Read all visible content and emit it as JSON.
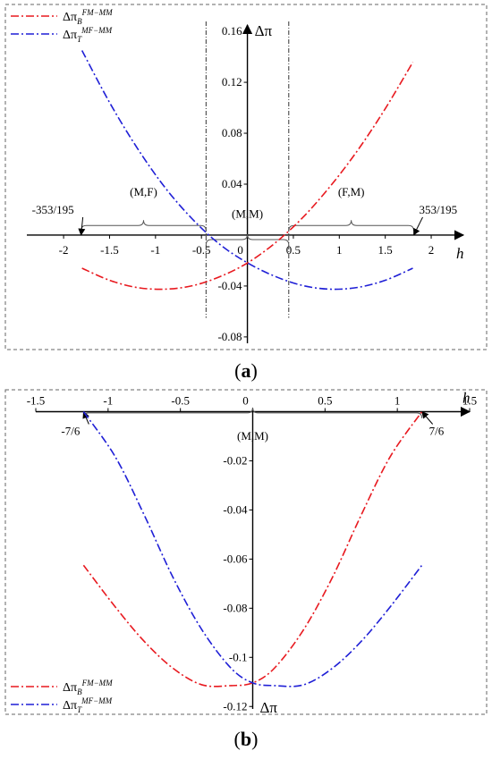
{
  "colors": {
    "series_B": "#e8191f",
    "series_T": "#1f1fd6",
    "axis": "#000000",
    "frame": "#666666",
    "guide": "#333333"
  },
  "chart_data": [
    {
      "type": "line",
      "panel_label": "a",
      "xlabel": "h",
      "ylabel": "Δπ",
      "xlim": [
        -2.4,
        2.35
      ],
      "ylim": [
        -0.085,
        0.165
      ],
      "x_ticks": [
        -2,
        -1.5,
        -1,
        -0.5,
        0,
        0.5,
        1,
        1.5,
        2
      ],
      "x_tick_labels": [
        "-2",
        "-1.5",
        "-1",
        "-0.5",
        "0",
        "0.5",
        "1",
        "1.5",
        "2"
      ],
      "y_ticks": [
        0.16,
        0.12,
        0.08,
        0.04,
        -0.04,
        -0.08
      ],
      "y_tick_labels": [
        "0.16",
        "0.12",
        "0.08",
        "0.04",
        "-0.04",
        "-0.08"
      ],
      "legend": {
        "placement": "top-left"
      },
      "series": [
        {
          "name_base": "Δπ",
          "name_sub": "B",
          "name_sup": "FM−MM",
          "color_key": "series_B",
          "x": [
            -1.8,
            -1.5,
            -1.2,
            -0.9,
            -0.6,
            -0.3,
            0,
            0.3,
            0.6,
            0.9,
            1.2,
            1.5,
            1.8
          ],
          "y": [
            -0.026,
            -0.0355,
            -0.0412,
            -0.0425,
            -0.0398,
            -0.0327,
            -0.0219,
            -0.0063,
            0.0136,
            0.0382,
            0.0666,
            0.0993,
            0.1358
          ]
        },
        {
          "name_base": "Δπ",
          "name_sub": "T",
          "name_sup": "MF−MM",
          "color_key": "series_T",
          "x": [
            -1.8,
            -1.5,
            -1.2,
            -0.9,
            -0.6,
            -0.3,
            0,
            0.3,
            0.6,
            0.9,
            1.2,
            1.5,
            1.8
          ],
          "y": [
            0.145,
            0.1042,
            0.0685,
            0.0377,
            0.0127,
            -0.0073,
            -0.0218,
            -0.0324,
            -0.0396,
            -0.0425,
            -0.0411,
            -0.0355,
            -0.026
          ]
        }
      ],
      "guides_x": [
        -0.45,
        0.45
      ],
      "regions": [
        {
          "label": "(M,F)",
          "x_from": -1.81,
          "x_to": -0.45,
          "brace_y": 0.0075,
          "label_y": 0.031
        },
        {
          "label": "(M,M)",
          "x_from": -0.45,
          "x_to": 0.45,
          "brace_y": -0.0035,
          "label_y": 0.0135
        },
        {
          "label": "(F,M)",
          "x_from": 0.45,
          "x_to": 1.81,
          "brace_y": 0.0075,
          "label_y": 0.031
        }
      ],
      "annotations": [
        {
          "text": "-353/195",
          "x": -1.81
        },
        {
          "text": "353/195",
          "x": 1.81
        }
      ]
    },
    {
      "type": "line",
      "panel_label": "b",
      "xlabel": "h",
      "ylabel": "Δπ",
      "xlim": [
        -1.5,
        1.5
      ],
      "ylim": [
        -0.121,
        0.002
      ],
      "x_ticks": [
        -1.5,
        -1,
        -0.5,
        0,
        0.5,
        1,
        1.5
      ],
      "x_tick_labels": [
        "-1.5",
        "-1",
        "-0.5",
        "0",
        "0.5",
        "1",
        "1.5"
      ],
      "y_ticks": [
        -0.02,
        -0.04,
        -0.06,
        -0.08,
        -0.1,
        -0.12
      ],
      "y_tick_labels": [
        "-0.02",
        "-0.04",
        "-0.06",
        "-0.08",
        "-0.1",
        "-0.12"
      ],
      "legend": {
        "placement": "bottom-left"
      },
      "series": [
        {
          "name_base": "Δπ",
          "name_sub": "B",
          "name_sup": "FM−MM",
          "color_key": "series_B",
          "x": [
            -1.17,
            -0.95,
            -0.75,
            -0.55,
            -0.35,
            -0.15,
            0,
            0.15,
            0.35,
            0.55,
            0.75,
            0.95,
            1.17
          ],
          "y": [
            -0.0625,
            -0.0795,
            -0.0935,
            -0.1045,
            -0.1112,
            -0.1115,
            -0.1104,
            -0.1044,
            -0.0889,
            -0.0676,
            -0.0421,
            -0.0184,
            0.0
          ]
        },
        {
          "name_base": "Δπ",
          "name_sub": "T",
          "name_sup": "MF−MM",
          "color_key": "series_T",
          "x": [
            -1.17,
            -0.95,
            -0.75,
            -0.55,
            -0.35,
            -0.15,
            0,
            0.15,
            0.35,
            0.55,
            0.75,
            0.95,
            1.17
          ],
          "y": [
            0.0,
            -0.0184,
            -0.0421,
            -0.0676,
            -0.0889,
            -0.1044,
            -0.1104,
            -0.1115,
            -0.1112,
            -0.1045,
            -0.0935,
            -0.0795,
            -0.0625
          ]
        }
      ],
      "regions": [
        {
          "label": "(M,M)",
          "x_from": -1.17,
          "x_to": 1.17,
          "brace_y": -0.0005,
          "label_y": -0.0115
        }
      ],
      "annotations": [
        {
          "text": "-7/6",
          "x": -1.17
        },
        {
          "text": "7/6",
          "x": 1.17
        }
      ]
    }
  ]
}
